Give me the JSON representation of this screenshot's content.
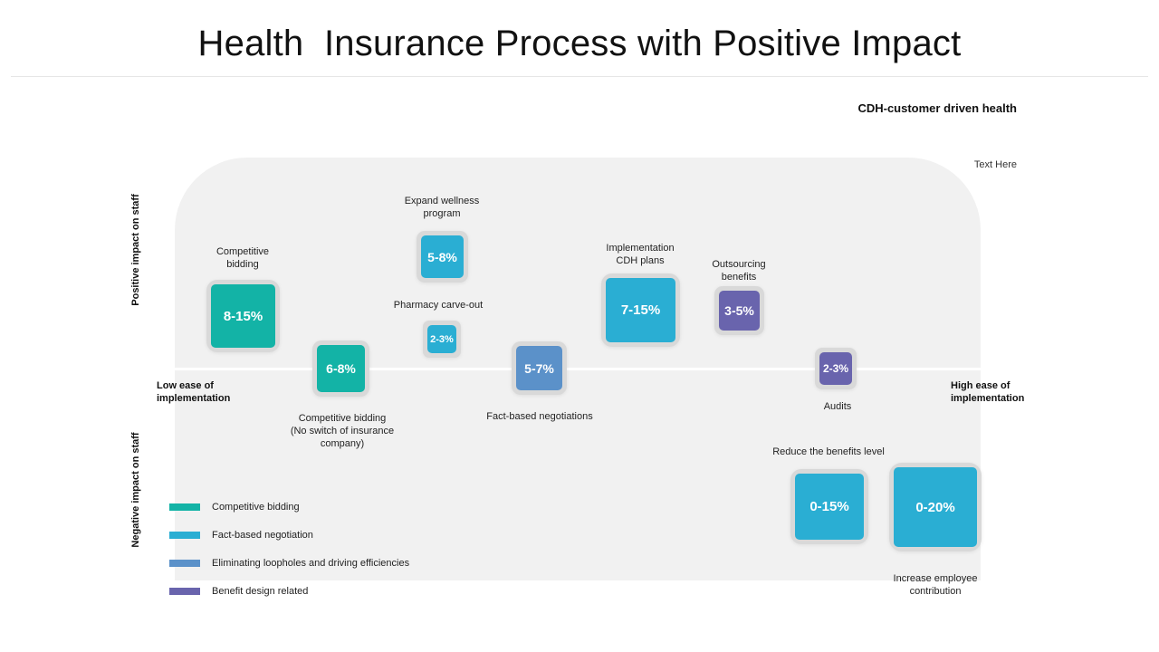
{
  "title": "Health  Insurance Process with Positive Impact",
  "subtitle": "CDH-customer driven health",
  "note": "Text Here",
  "axes": {
    "positive": "Positive impact on staff",
    "negative": "Negative impact on staff",
    "low_line1": "Low ease of",
    "low_line2": "implementation",
    "high_line1": "High ease of",
    "high_line2": "implementation"
  },
  "colors": {
    "competitive": "#13b3a6",
    "fact": "#2aaed3",
    "loopholes": "#5b91c9",
    "benefit": "#6964ad"
  },
  "items": {
    "competitive_bidding": {
      "value": "8-15%",
      "label1": "Competitive",
      "label2": "bidding"
    },
    "competitive_no_switch": {
      "value": "6-8%",
      "label1": "Competitive bidding",
      "label2": "(No switch of insurance",
      "label3": "company)"
    },
    "expand_wellness": {
      "value": "5-8%",
      "label1": "Expand wellness",
      "label2": "program"
    },
    "pharmacy": {
      "value": "2-3%",
      "label1": "Pharmacy carve-out"
    },
    "fact_based": {
      "value": "5-7%",
      "label1": "Fact-based  negotiations"
    },
    "cdh_plans": {
      "value": "7-15%",
      "label1": "Implementation",
      "label2": "CDH plans"
    },
    "outsourcing": {
      "value": "3-5%",
      "label1": "Outsourcing",
      "label2": "benefits"
    },
    "audits": {
      "value": "2-3%",
      "label1": "Audits"
    },
    "reduce_benefits": {
      "value": "0-15%",
      "label1": "Reduce the benefits level"
    },
    "increase_contribution": {
      "value": "0-20%",
      "label1": "Increase employee",
      "label2": "contribution"
    }
  },
  "legend": [
    {
      "label": "Competitive  bidding",
      "color": "#13b3a6"
    },
    {
      "label": "Fact-based  negotiation",
      "color": "#2aaed3"
    },
    {
      "label": "Eliminating  loopholes and driving  efficiencies",
      "color": "#5b91c9"
    },
    {
      "label": "Benefit design related",
      "color": "#6964ad"
    }
  ]
}
